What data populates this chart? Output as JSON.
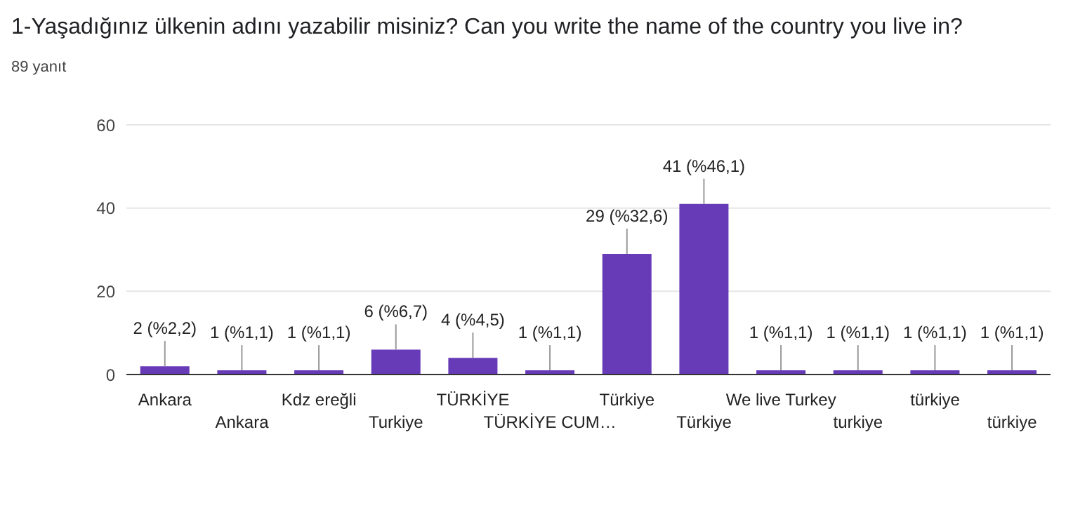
{
  "chart_data": {
    "type": "bar",
    "title": "1-Yaşadığınız ülkenin adını yazabilir misiniz? Can you write the name of the country you live in?",
    "subtitle": "89 yanıt",
    "categories": [
      "Ankara",
      "Ankara",
      "Kdz ereğli",
      "Turkiye",
      "TÜRKİYE",
      "TÜRKİYE CUM…",
      "Türkiye",
      "Türkiye",
      "We live Turkey",
      "turkiye",
      "türkiye",
      "türkiye"
    ],
    "values": [
      2,
      1,
      1,
      6,
      4,
      1,
      29,
      41,
      1,
      1,
      1,
      1
    ],
    "value_labels": [
      "2 (%2,2)",
      "1 (%1,1)",
      "1 (%1,1)",
      "6 (%6,7)",
      "4 (%4,5)",
      "1 (%1,1)",
      "29 (%32,6)",
      "41 (%46,1)",
      "1 (%1,1)",
      "1 (%1,1)",
      "1 (%1,1)",
      "1 (%1,1)"
    ],
    "color": "#673ab7",
    "ylim": [
      0,
      60
    ],
    "yticks": [
      0,
      20,
      40,
      60
    ],
    "grid": "y"
  }
}
